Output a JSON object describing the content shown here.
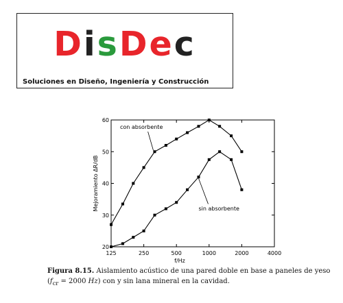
{
  "logo": {
    "name_parts": [
      {
        "text": "D",
        "color": "#e8252b"
      },
      {
        "text": "i",
        "color": "#222222"
      },
      {
        "text": "s",
        "color": "#2a9a3c"
      },
      {
        "text": "D",
        "color": "#e8252b"
      },
      {
        "text": "e",
        "color": "#e8252b"
      },
      {
        "text": "c",
        "color": "#222222"
      }
    ],
    "subtitle": "Soluciones en Diseño, Ingeniería y Construcción"
  },
  "caption": {
    "label": "Figura 8.15.",
    "text_before_formula": "Aislamiento acústico de una pared doble en base a paneles de yeso (",
    "formula_var": "f",
    "formula_sub": "cr",
    "formula_mid": " = 2000 ",
    "formula_unit": "Hz",
    "text_after_formula": ") con y sin lana mineral en la cavidad."
  },
  "chart_data": {
    "type": "line",
    "x_scale": "log2",
    "xlabel": "f/Hz",
    "ylabel": "Mejoramiento ΔR/dB",
    "x_ticks": [
      125,
      250,
      500,
      1000,
      2000,
      4000
    ],
    "x_tick_labels": [
      "125",
      "250",
      "500",
      "1000",
      "2000",
      "4000"
    ],
    "y_ticks": [
      20,
      30,
      40,
      50,
      60
    ],
    "y_tick_labels": [
      "20",
      "30",
      "40",
      "50",
      "60"
    ],
    "xlim": [
      125,
      4000
    ],
    "ylim": [
      20,
      60
    ],
    "grid": false,
    "series": [
      {
        "name": "con absorbente",
        "x": [
          125,
          160,
          200,
          250,
          315,
          400,
          500,
          630,
          800,
          1000,
          1250,
          1600,
          2000
        ],
        "y": [
          27,
          33.5,
          40,
          45,
          50,
          52,
          54,
          56,
          58,
          60,
          58,
          55,
          50
        ]
      },
      {
        "name": "sin absorbente",
        "x": [
          125,
          160,
          200,
          250,
          315,
          400,
          500,
          630,
          800,
          1000,
          1250,
          1600,
          2000
        ],
        "y": [
          20,
          21,
          23,
          25,
          30,
          32,
          34,
          38,
          42,
          47.5,
          50,
          47.5,
          38
        ]
      }
    ]
  }
}
